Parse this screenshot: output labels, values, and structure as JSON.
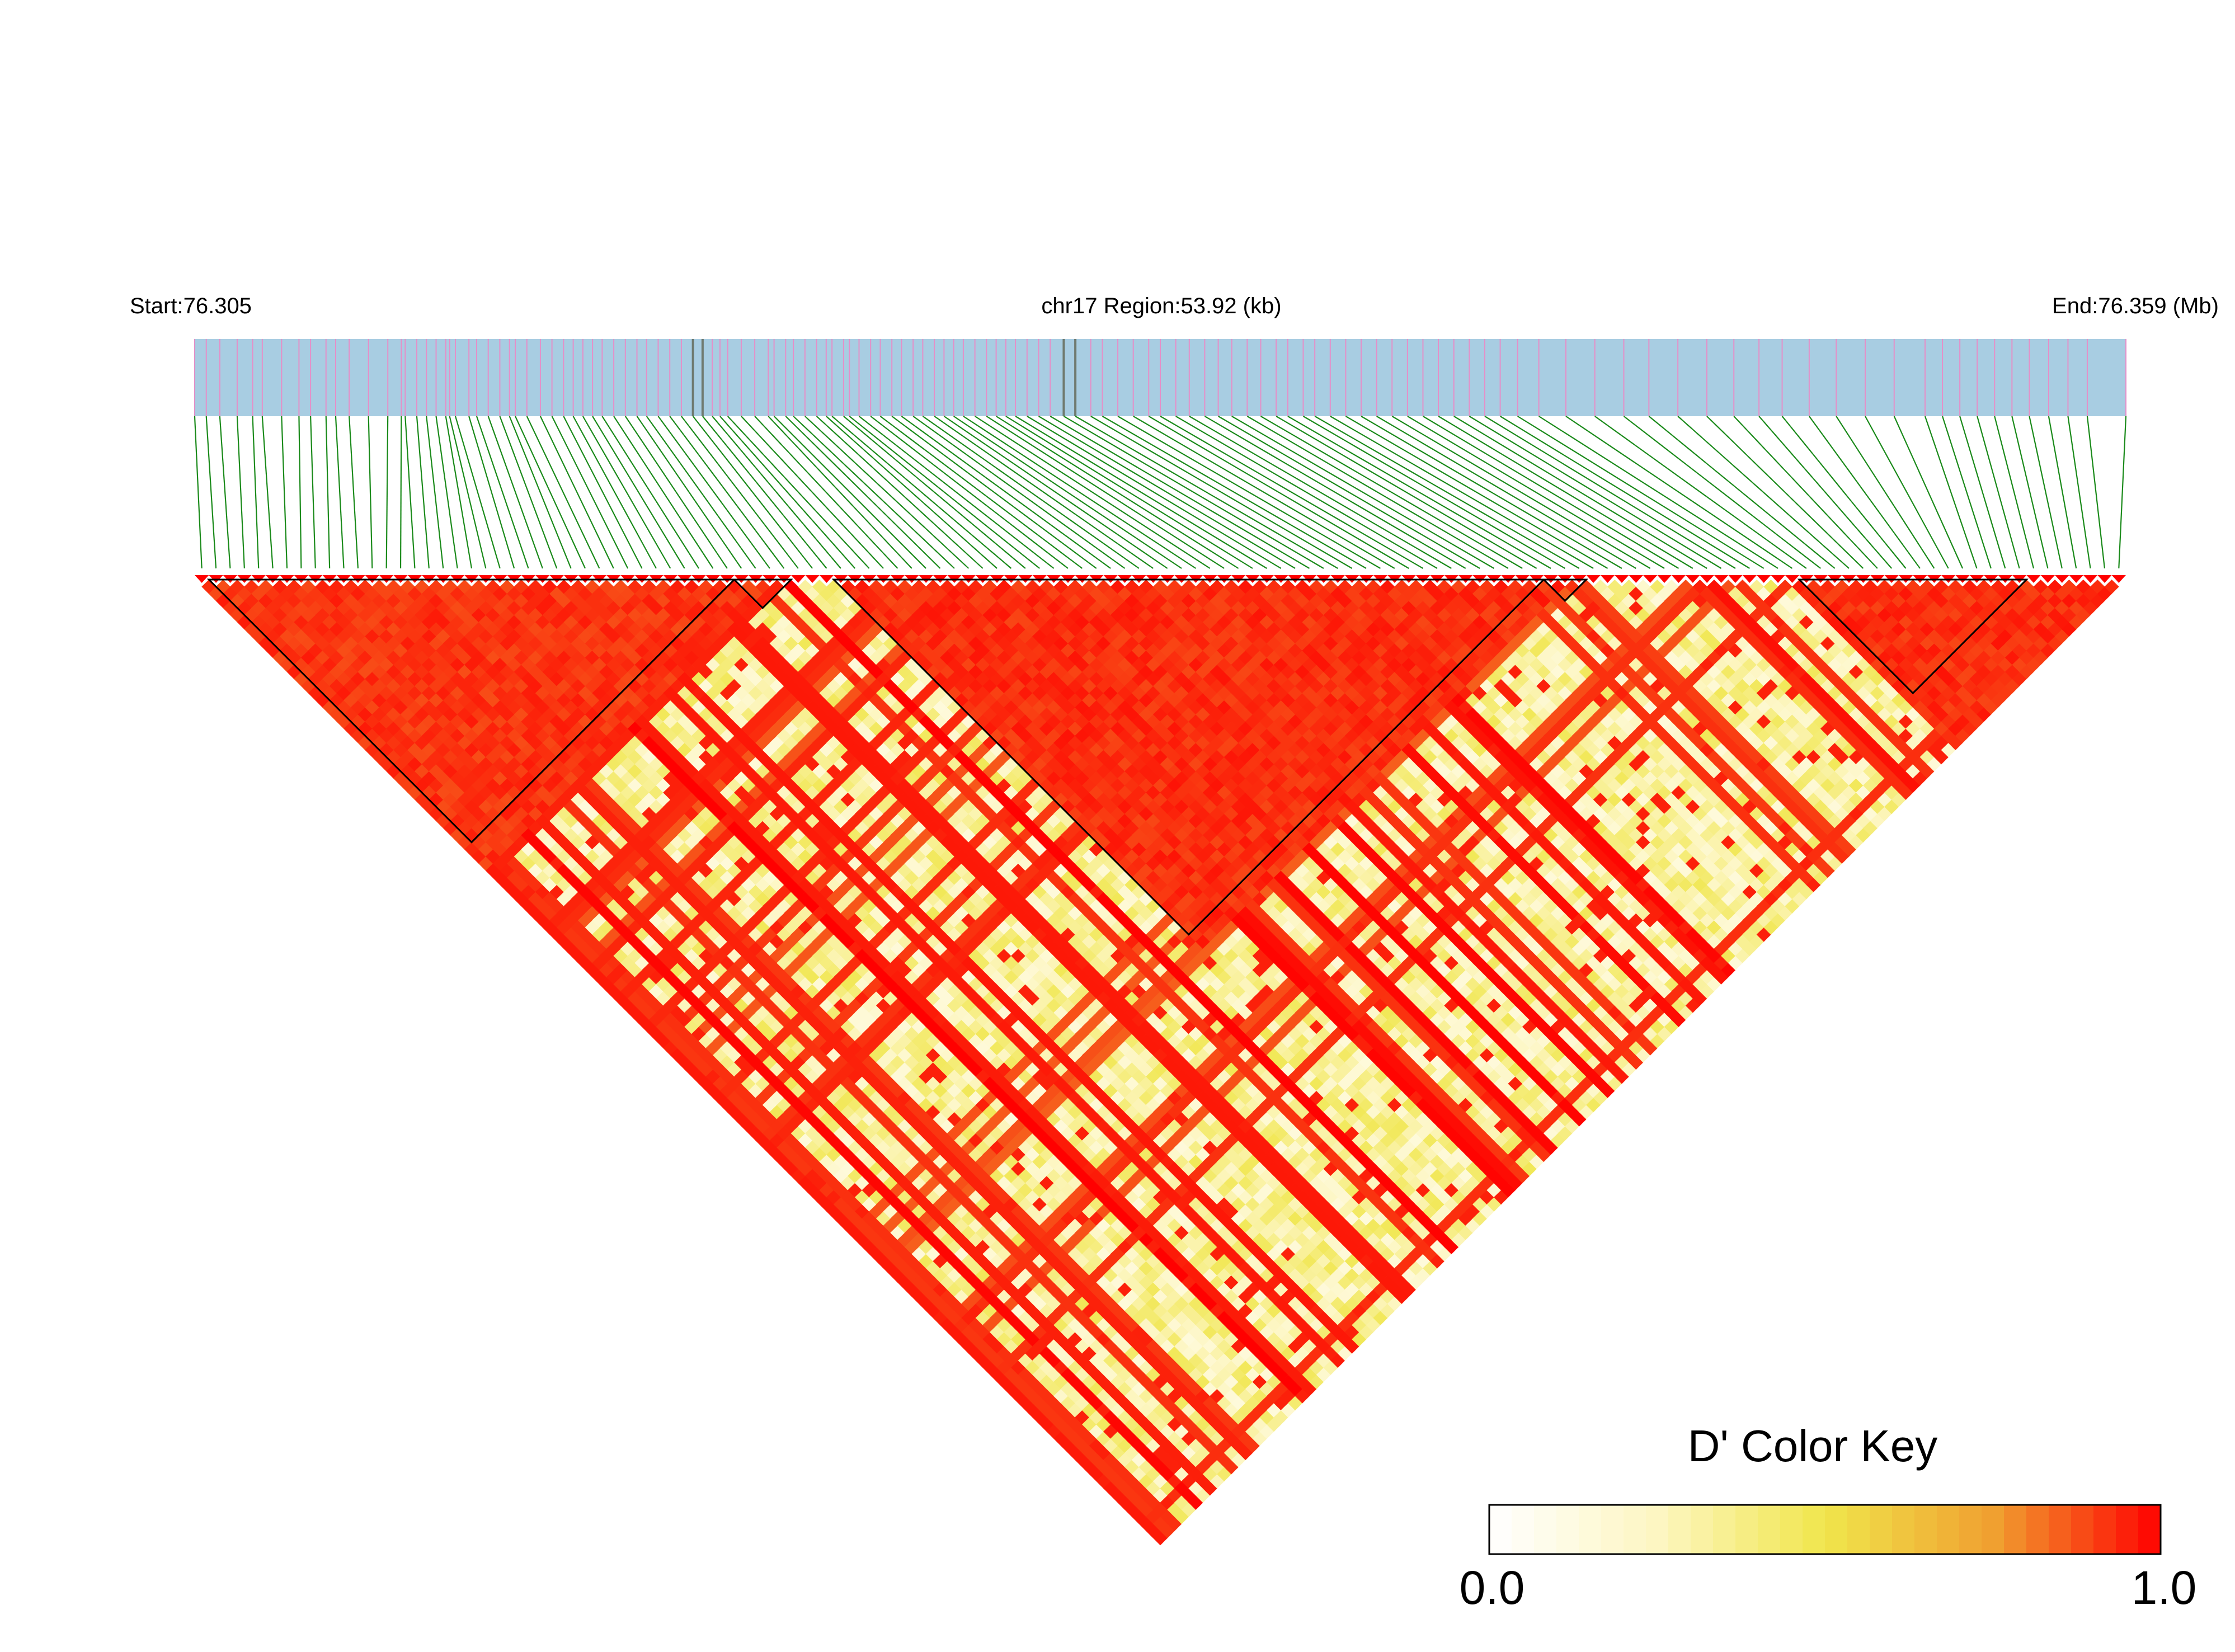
{
  "header": {
    "start_label": "Start:76.305",
    "region_label": "chr17 Region:53.92 (kb)",
    "end_label": "End:76.359 (Mb)"
  },
  "colors": {
    "track": "#a8cde2",
    "snp_tick": "#e58fc8",
    "snp_tick_dark": "#6f7a6f",
    "connector": "#1a8a1a",
    "block_outline": "#000000",
    "scale": [
      "#ffffff",
      "#fdf6c2",
      "#f0e64c",
      "#f0a030",
      "#ff0000"
    ]
  },
  "color_key": {
    "title": "D' Color Key",
    "min_label": "0.0",
    "max_label": "1.0",
    "min": 0.0,
    "max": 1.0
  },
  "chart_data": {
    "type": "heatmap",
    "title": "",
    "chromosome": "chr17",
    "region_start_mb": 76.305,
    "region_end_mb": 76.359,
    "region_length_kb": 53.92,
    "metric": "D'",
    "snp_count": 136,
    "snp_track_fraction": [
      0.0,
      0.006,
      0.013,
      0.022,
      0.03,
      0.035,
      0.045,
      0.054,
      0.06,
      0.068,
      0.073,
      0.08,
      0.09,
      0.1,
      0.107,
      0.109,
      0.115,
      0.12,
      0.125,
      0.13,
      0.132,
      0.135,
      0.142,
      0.146,
      0.152,
      0.158,
      0.163,
      0.166,
      0.172,
      0.179,
      0.185,
      0.191,
      0.196,
      0.201,
      0.206,
      0.211,
      0.217,
      0.223,
      0.229,
      0.234,
      0.24,
      0.246,
      0.252,
      0.258,
      0.263,
      0.268,
      0.272,
      0.276,
      0.283,
      0.29,
      0.297,
      0.3,
      0.306,
      0.31,
      0.316,
      0.322,
      0.327,
      0.33,
      0.336,
      0.339,
      0.344,
      0.35,
      0.355,
      0.361,
      0.366,
      0.372,
      0.377,
      0.383,
      0.388,
      0.393,
      0.398,
      0.404,
      0.41,
      0.415,
      0.42,
      0.425,
      0.431,
      0.437,
      0.443,
      0.45,
      0.456,
      0.464,
      0.47,
      0.478,
      0.486,
      0.494,
      0.5,
      0.508,
      0.515,
      0.523,
      0.53,
      0.537,
      0.545,
      0.552,
      0.56,
      0.566,
      0.574,
      0.58,
      0.588,
      0.596,
      0.604,
      0.612,
      0.62,
      0.628,
      0.636,
      0.644,
      0.652,
      0.66,
      0.668,
      0.676,
      0.685,
      0.696,
      0.71,
      0.725,
      0.74,
      0.753,
      0.768,
      0.783,
      0.797,
      0.81,
      0.822,
      0.836,
      0.85,
      0.865,
      0.88,
      0.896,
      0.905,
      0.914,
      0.923,
      0.932,
      0.941,
      0.95,
      0.96,
      0.97,
      0.98,
      1.0
    ],
    "dark_snp_indices": [
      43,
      44,
      79,
      80
    ],
    "ld_blocks": [
      {
        "first_snp": 1,
        "last_snp": 37
      },
      {
        "first_snp": 38,
        "last_snp": 41
      },
      {
        "first_snp": 45,
        "last_snp": 94
      },
      {
        "first_snp": 95,
        "last_snp": 97
      },
      {
        "first_snp": 113,
        "last_snp": 128
      }
    ],
    "strong_ld_ranges": [
      {
        "first_snp": 0,
        "last_snp": 40,
        "d_prime": 0.96
      },
      {
        "first_snp": 45,
        "last_snp": 96,
        "d_prime": 0.97
      },
      {
        "first_snp": 112,
        "last_snp": 135,
        "d_prime": 0.97
      }
    ],
    "background_d_prime_range": [
      0.0,
      1.0
    ]
  }
}
